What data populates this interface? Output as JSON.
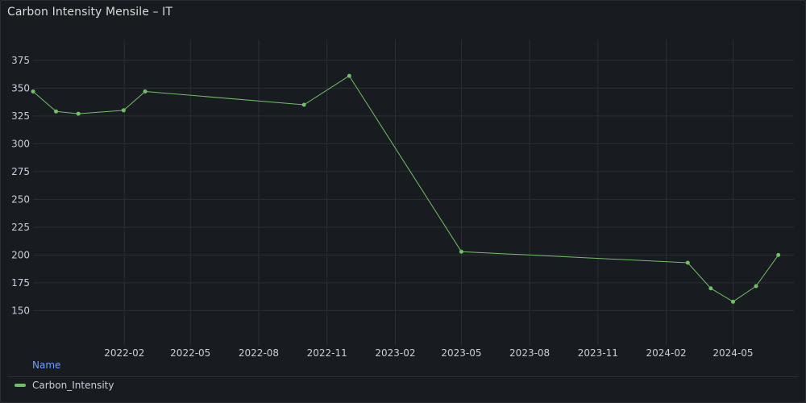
{
  "panel": {
    "title": "Carbon Intensity Mensile – IT"
  },
  "legend": {
    "header": "Name",
    "items": [
      {
        "label": "Carbon_Intensity",
        "color": "#73bf69"
      }
    ]
  },
  "chart_data": {
    "type": "line",
    "title": "Carbon Intensity Mensile – IT",
    "xlabel": "",
    "ylabel": "",
    "ylim": [
      130,
      385
    ],
    "xlim": [
      "2021-10-01",
      "2024-07-22"
    ],
    "yticks": [
      150,
      175,
      200,
      225,
      250,
      275,
      300,
      325,
      350,
      375
    ],
    "xticks": [
      "2022-02",
      "2022-05",
      "2022-08",
      "2022-11",
      "2023-02",
      "2023-05",
      "2023-08",
      "2023-11",
      "2024-02",
      "2024-05"
    ],
    "grid": true,
    "legend_position": "bottom",
    "series": [
      {
        "name": "Carbon_Intensity",
        "color": "#73bf69",
        "points": [
          {
            "x": "2021-10-01",
            "y": 347
          },
          {
            "x": "2021-11-01",
            "y": 329
          },
          {
            "x": "2021-12-01",
            "y": 327
          },
          {
            "x": "2022-01-31",
            "y": 330
          },
          {
            "x": "2022-03-01",
            "y": 347
          },
          {
            "x": "2022-10-01",
            "y": 335
          },
          {
            "x": "2022-12-01",
            "y": 361
          },
          {
            "x": "2023-05-01",
            "y": 203
          },
          {
            "x": "2024-03-01",
            "y": 193
          },
          {
            "x": "2024-04-01",
            "y": 170
          },
          {
            "x": "2024-05-01",
            "y": 158
          },
          {
            "x": "2024-06-01",
            "y": 172
          },
          {
            "x": "2024-07-01",
            "y": 200
          }
        ]
      }
    ]
  }
}
